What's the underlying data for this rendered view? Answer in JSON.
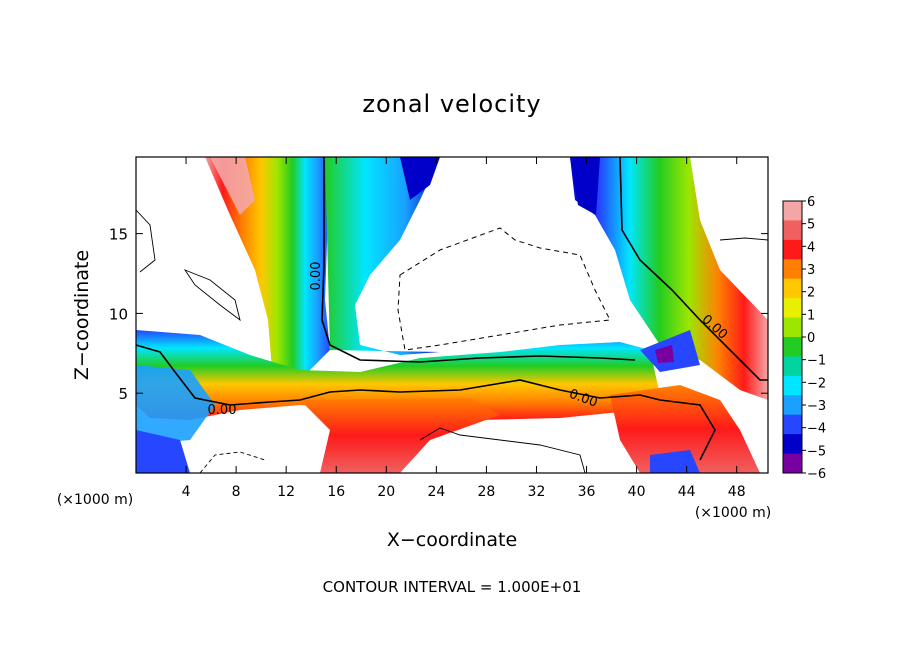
{
  "chart_data": {
    "type": "heatmap",
    "title": "zonal velocity",
    "xlabel": "X−coordinate",
    "ylabel": "Z−coordinate",
    "x_unit_left": "(×1000 m)",
    "x_unit_right": "(×1000 m)",
    "xlim": [
      0,
      50.5
    ],
    "ylim": [
      0,
      19.8
    ],
    "x_ticks": [
      4,
      8,
      12,
      16,
      20,
      24,
      28,
      32,
      36,
      40,
      44,
      48
    ],
    "y_ticks": [
      5,
      10,
      15
    ],
    "colorbar": {
      "ticks": [
        6,
        5,
        4,
        3,
        2,
        1,
        0,
        -1,
        -2,
        -3,
        -4,
        -5,
        -6
      ],
      "tick_labels": [
        "6",
        "5",
        "4",
        "3",
        "2",
        "1",
        "0",
        "−1",
        "−2",
        "−3",
        "−4",
        "−5",
        "−6"
      ],
      "min": -6,
      "max": 6,
      "colors": [
        "#f4a6a6",
        "#f06060",
        "#ff1a1a",
        "#ff8000",
        "#ffc800",
        "#e6f000",
        "#9ce600",
        "#22cc22",
        "#00d4a0",
        "#00e6ff",
        "#1aa0ff",
        "#2646ff",
        "#0000c8",
        "#7800a0"
      ]
    },
    "contour_labels": [
      "0.00",
      "0.00",
      "0.00",
      "0.00"
    ],
    "footer": "CONTOUR INTERVAL = 1.000E+01"
  }
}
